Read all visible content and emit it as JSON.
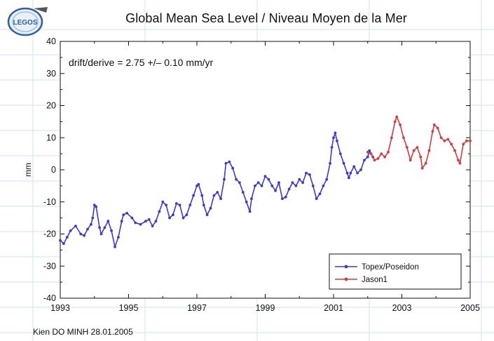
{
  "logo": {
    "text": "LEGOS"
  },
  "title": "Global Mean Sea Level / Niveau Moyen de la Mer",
  "footer": "Kien DO MINH 28.01.2005",
  "colors": {
    "topex": "#3a3ad8",
    "jason": "#d63a3a",
    "page_grid": "#cfe3f3"
  },
  "chart_data": {
    "type": "line",
    "title": "Global Mean Sea Level / Niveau Moyen de la Mer",
    "xlabel": "",
    "ylabel": "mm",
    "xlim": [
      1993,
      2005
    ],
    "ylim": [
      -40,
      40
    ],
    "x_ticks": [
      "1993",
      "1995",
      "1997",
      "1999",
      "2001",
      "2003",
      "2005"
    ],
    "y_ticks": [
      "40",
      "30",
      "20",
      "10",
      "0",
      "-10",
      "-20",
      "-30",
      "-40"
    ],
    "annotation": "drift/derive = 2.75 +/– 0.10 mm/yr",
    "grid": false,
    "legend_position": "bottom-right",
    "series": [
      {
        "name": "Topex/Poseidon",
        "color": "#3a3ad8",
        "points": [
          [
            1993.0,
            -22
          ],
          [
            1993.1,
            -23
          ],
          [
            1993.2,
            -21
          ],
          [
            1993.3,
            -19
          ],
          [
            1993.45,
            -17.5
          ],
          [
            1993.6,
            -20
          ],
          [
            1993.7,
            -20.5
          ],
          [
            1993.8,
            -18.5
          ],
          [
            1993.9,
            -17
          ],
          [
            1993.95,
            -15
          ],
          [
            1994.0,
            -11
          ],
          [
            1994.05,
            -11.5
          ],
          [
            1994.15,
            -18
          ],
          [
            1994.2,
            -20
          ],
          [
            1994.3,
            -18
          ],
          [
            1994.4,
            -16
          ],
          [
            1994.5,
            -19
          ],
          [
            1994.6,
            -24
          ],
          [
            1994.7,
            -21
          ],
          [
            1994.8,
            -16
          ],
          [
            1994.85,
            -14
          ],
          [
            1994.95,
            -13.5
          ],
          [
            1995.1,
            -15
          ],
          [
            1995.2,
            -16.5
          ],
          [
            1995.35,
            -17
          ],
          [
            1995.5,
            -16
          ],
          [
            1995.6,
            -15.5
          ],
          [
            1995.7,
            -17.5
          ],
          [
            1995.8,
            -16
          ],
          [
            1995.9,
            -13
          ],
          [
            1996.0,
            -10
          ],
          [
            1996.1,
            -11
          ],
          [
            1996.2,
            -15
          ],
          [
            1996.3,
            -14
          ],
          [
            1996.4,
            -10.5
          ],
          [
            1996.5,
            -11
          ],
          [
            1996.6,
            -15
          ],
          [
            1996.7,
            -14
          ],
          [
            1996.8,
            -11
          ],
          [
            1996.9,
            -8
          ],
          [
            1997.0,
            -5
          ],
          [
            1997.05,
            -4.5
          ],
          [
            1997.15,
            -8
          ],
          [
            1997.2,
            -11
          ],
          [
            1997.3,
            -14
          ],
          [
            1997.4,
            -12
          ],
          [
            1997.5,
            -8
          ],
          [
            1997.6,
            -7
          ],
          [
            1997.7,
            -9
          ],
          [
            1997.8,
            -3
          ],
          [
            1997.85,
            2
          ],
          [
            1997.95,
            2.5
          ],
          [
            1998.05,
            0.5
          ],
          [
            1998.15,
            -3
          ],
          [
            1998.25,
            -4
          ],
          [
            1998.35,
            -7
          ],
          [
            1998.45,
            -10
          ],
          [
            1998.55,
            -13
          ],
          [
            1998.6,
            -9
          ],
          [
            1998.7,
            -5
          ],
          [
            1998.8,
            -4
          ],
          [
            1998.9,
            -5
          ],
          [
            1999.0,
            -2
          ],
          [
            1999.1,
            -3
          ],
          [
            1999.2,
            -5
          ],
          [
            1999.3,
            -6.5
          ],
          [
            1999.4,
            -4
          ],
          [
            1999.5,
            -9
          ],
          [
            1999.6,
            -8.5
          ],
          [
            1999.7,
            -6
          ],
          [
            1999.8,
            -4
          ],
          [
            1999.9,
            -5
          ],
          [
            2000.0,
            -3
          ],
          [
            2000.1,
            -4
          ],
          [
            2000.2,
            -1
          ],
          [
            2000.3,
            -1.5
          ],
          [
            2000.4,
            -5
          ],
          [
            2000.5,
            -9
          ],
          [
            2000.6,
            -7.5
          ],
          [
            2000.7,
            -5
          ],
          [
            2000.8,
            -3
          ],
          [
            2000.9,
            2
          ],
          [
            2000.95,
            7
          ],
          [
            2001.0,
            10
          ],
          [
            2001.05,
            11.5
          ],
          [
            2001.1,
            9
          ],
          [
            2001.2,
            5
          ],
          [
            2001.3,
            2
          ],
          [
            2001.4,
            -1
          ],
          [
            2001.45,
            -2.5
          ],
          [
            2001.5,
            -1
          ],
          [
            2001.6,
            1
          ],
          [
            2001.7,
            -1
          ],
          [
            2001.8,
            0
          ],
          [
            2001.9,
            3
          ],
          [
            2002.0,
            4
          ],
          [
            2002.05,
            6
          ],
          [
            2002.15,
            4
          ]
        ]
      },
      {
        "name": "Jason1",
        "color": "#d63a3a",
        "points": [
          [
            2002.0,
            5.5
          ],
          [
            2002.1,
            5
          ],
          [
            2002.2,
            3
          ],
          [
            2002.3,
            3.5
          ],
          [
            2002.4,
            5
          ],
          [
            2002.5,
            4
          ],
          [
            2002.6,
            5.5
          ],
          [
            2002.7,
            10
          ],
          [
            2002.8,
            15
          ],
          [
            2002.85,
            16.5
          ],
          [
            2002.95,
            14
          ],
          [
            2003.05,
            10
          ],
          [
            2003.15,
            7
          ],
          [
            2003.25,
            3
          ],
          [
            2003.35,
            6
          ],
          [
            2003.45,
            7
          ],
          [
            2003.55,
            4
          ],
          [
            2003.6,
            0.5
          ],
          [
            2003.7,
            2
          ],
          [
            2003.8,
            6
          ],
          [
            2003.9,
            12
          ],
          [
            2003.95,
            14
          ],
          [
            2004.05,
            13
          ],
          [
            2004.15,
            10
          ],
          [
            2004.25,
            9
          ],
          [
            2004.35,
            9.5
          ],
          [
            2004.45,
            8
          ],
          [
            2004.55,
            6
          ],
          [
            2004.65,
            3
          ],
          [
            2004.7,
            2
          ],
          [
            2004.8,
            8
          ],
          [
            2004.9,
            9
          ],
          [
            2005.0,
            9
          ]
        ]
      }
    ]
  }
}
